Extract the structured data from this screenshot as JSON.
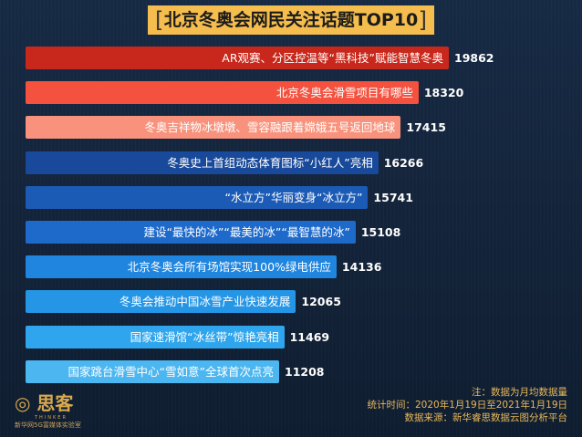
{
  "chart_data": {
    "type": "bar",
    "orientation": "horizontal",
    "title": "北京冬奥会网民关注话题TOP10",
    "categories": [
      "AR观赛、分区控温等“黑科技”赋能智慧冬奥",
      "北京冬奥会滑雪项目有哪些",
      "冬奥吉祥物冰墩墩、雪容融跟着嫦娥五号返回地球",
      "冬奥史上首组动态体育图标“小红人”亮相",
      "“水立方”华丽变身“冰立方”",
      "建设“最快的冰”“最美的冰”“最智慧的冰”",
      "北京冬奥会所有场馆实现100%绿电供应",
      "冬奥会推动中国冰雪产业快速发展",
      "国家速滑馆“冰丝带”惊艳亮相",
      "国家跳台滑雪中心“雪如意”全球首次点亮"
    ],
    "values": [
      19862,
      18320,
      17415,
      16266,
      15741,
      15108,
      14136,
      12065,
      11469,
      11208
    ],
    "colors": [
      "#c8281b",
      "#f4513f",
      "#f8927c",
      "#18499a",
      "#1c5bb5",
      "#1d6acb",
      "#1f85de",
      "#2596e6",
      "#2ea5ec",
      "#4cb6f0"
    ]
  },
  "notes": {
    "note": "注：数据为月均数据量",
    "period": "统计时间：2020年1月19日至2021年1月19日",
    "source": "数据来源：新华睿思数据云图分析平台"
  },
  "logo": {
    "name": "思客",
    "en": "THINKER",
    "sub": "新华网5G富媒体实验室"
  }
}
